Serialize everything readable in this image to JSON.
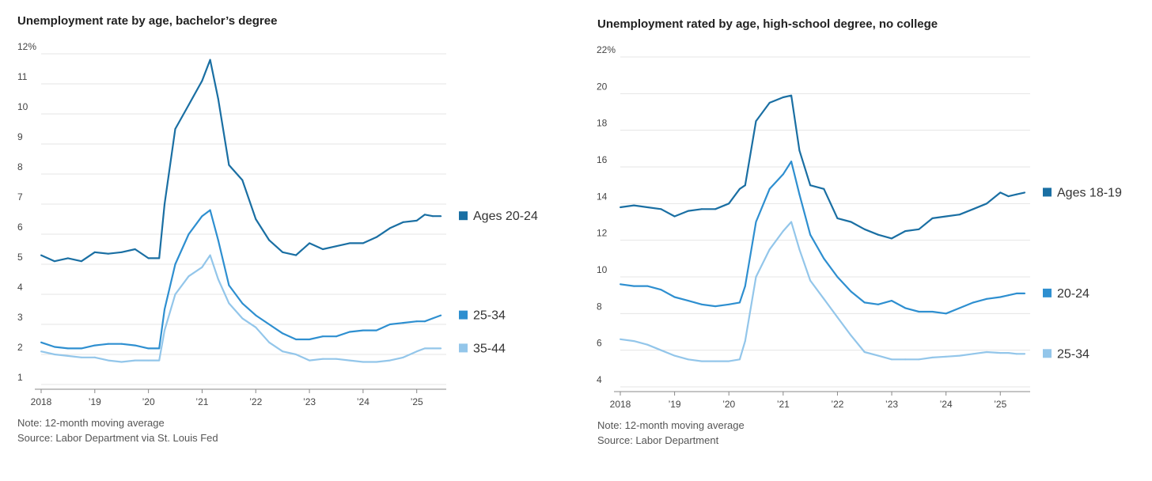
{
  "chart_data": [
    {
      "type": "line",
      "title": "Unemployment rate by age, bachelor’s degree",
      "note": "Note: 12-month moving average",
      "source": "Source: Labor Department via St. Louis Fed",
      "ylim": [
        1,
        12
      ],
      "yticks": [
        1,
        2,
        3,
        4,
        5,
        6,
        7,
        8,
        9,
        10,
        11,
        12
      ],
      "ytick_labels": [
        "1",
        "2",
        "3",
        "4",
        "5",
        "6",
        "7",
        "8",
        "9",
        "10",
        "11",
        "12%"
      ],
      "xlim": [
        2018,
        2025.55
      ],
      "xticks": [
        2018,
        2019,
        2020,
        2021,
        2022,
        2023,
        2024,
        2025
      ],
      "xtick_labels": [
        "2018",
        "’19",
        "’20",
        "’21",
        "’22",
        "’23",
        "’24",
        "’25"
      ],
      "grid": true,
      "legend": "right",
      "series": [
        {
          "name": "Ages 20-24",
          "color": "#1a6fa3",
          "x": [
            2018.0,
            2018.25,
            2018.5,
            2018.75,
            2019.0,
            2019.25,
            2019.5,
            2019.75,
            2020.0,
            2020.2,
            2020.3,
            2020.5,
            2020.75,
            2021.0,
            2021.15,
            2021.3,
            2021.5,
            2021.75,
            2022.0,
            2022.25,
            2022.5,
            2022.75,
            2023.0,
            2023.25,
            2023.5,
            2023.75,
            2024.0,
            2024.25,
            2024.5,
            2024.75,
            2025.0,
            2025.15,
            2025.3,
            2025.45
          ],
          "y": [
            5.3,
            5.1,
            5.2,
            5.1,
            5.4,
            5.35,
            5.4,
            5.5,
            5.2,
            5.2,
            7.0,
            9.5,
            10.3,
            11.1,
            11.8,
            10.5,
            8.3,
            7.8,
            6.5,
            5.8,
            5.4,
            5.3,
            5.7,
            5.5,
            5.6,
            5.7,
            5.7,
            5.9,
            6.2,
            6.4,
            6.45,
            6.65,
            6.6,
            6.6
          ]
        },
        {
          "name": "25-34",
          "color": "#2e8fd0",
          "x": [
            2018.0,
            2018.25,
            2018.5,
            2018.75,
            2019.0,
            2019.25,
            2019.5,
            2019.75,
            2020.0,
            2020.2,
            2020.3,
            2020.5,
            2020.75,
            2021.0,
            2021.15,
            2021.3,
            2021.5,
            2021.75,
            2022.0,
            2022.25,
            2022.5,
            2022.75,
            2023.0,
            2023.25,
            2023.5,
            2023.75,
            2024.0,
            2024.25,
            2024.5,
            2024.75,
            2025.0,
            2025.15,
            2025.3,
            2025.45
          ],
          "y": [
            2.4,
            2.25,
            2.2,
            2.2,
            2.3,
            2.35,
            2.35,
            2.3,
            2.2,
            2.2,
            3.5,
            5.0,
            6.0,
            6.6,
            6.8,
            5.8,
            4.3,
            3.7,
            3.3,
            3.0,
            2.7,
            2.5,
            2.5,
            2.6,
            2.6,
            2.75,
            2.8,
            2.8,
            3.0,
            3.05,
            3.1,
            3.1,
            3.2,
            3.3
          ]
        },
        {
          "name": "35-44",
          "color": "#93c6ea",
          "x": [
            2018.0,
            2018.25,
            2018.5,
            2018.75,
            2019.0,
            2019.25,
            2019.5,
            2019.75,
            2020.0,
            2020.2,
            2020.3,
            2020.5,
            2020.75,
            2021.0,
            2021.15,
            2021.3,
            2021.5,
            2021.75,
            2022.0,
            2022.25,
            2022.5,
            2022.75,
            2023.0,
            2023.25,
            2023.5,
            2023.75,
            2024.0,
            2024.25,
            2024.5,
            2024.75,
            2025.0,
            2025.15,
            2025.3,
            2025.45
          ],
          "y": [
            2.1,
            2.0,
            1.95,
            1.9,
            1.9,
            1.8,
            1.75,
            1.8,
            1.8,
            1.8,
            2.8,
            4.0,
            4.6,
            4.9,
            5.3,
            4.5,
            3.7,
            3.2,
            2.9,
            2.4,
            2.1,
            2.0,
            1.8,
            1.85,
            1.85,
            1.8,
            1.75,
            1.75,
            1.8,
            1.9,
            2.1,
            2.2,
            2.2,
            2.2
          ]
        }
      ]
    },
    {
      "type": "line",
      "title": "Unemployment rated by age, high-school degree, no college",
      "note": "Note: 12-month moving average",
      "source": "Source: Labor Department",
      "ylim": [
        4,
        22
      ],
      "yticks": [
        4,
        6,
        8,
        10,
        12,
        14,
        16,
        18,
        20,
        22
      ],
      "ytick_labels": [
        "4",
        "6",
        "8",
        "10",
        "12",
        "14",
        "16",
        "18",
        "20",
        "22%"
      ],
      "xlim": [
        2018,
        2025.55
      ],
      "xticks": [
        2018,
        2019,
        2020,
        2021,
        2022,
        2023,
        2024,
        2025
      ],
      "xtick_labels": [
        "2018",
        "’19",
        "’20",
        "’21",
        "’22",
        "’23",
        "’24",
        "’25"
      ],
      "grid": true,
      "legend": "right",
      "series": [
        {
          "name": "Ages 18-19",
          "color": "#1a6fa3",
          "x": [
            2018.0,
            2018.25,
            2018.5,
            2018.75,
            2019.0,
            2019.25,
            2019.5,
            2019.75,
            2020.0,
            2020.2,
            2020.3,
            2020.5,
            2020.75,
            2021.0,
            2021.15,
            2021.3,
            2021.5,
            2021.75,
            2022.0,
            2022.25,
            2022.5,
            2022.75,
            2023.0,
            2023.25,
            2023.5,
            2023.75,
            2024.0,
            2024.25,
            2024.5,
            2024.75,
            2025.0,
            2025.15,
            2025.3,
            2025.45
          ],
          "y": [
            13.8,
            13.9,
            13.8,
            13.7,
            13.3,
            13.6,
            13.7,
            13.7,
            14.0,
            14.8,
            15.0,
            18.5,
            19.5,
            19.8,
            19.9,
            16.9,
            15.0,
            14.8,
            13.2,
            13.0,
            12.6,
            12.3,
            12.1,
            12.5,
            12.6,
            13.2,
            13.3,
            13.4,
            13.7,
            14.0,
            14.6,
            14.4,
            14.5,
            14.6
          ]
        },
        {
          "name": "20-24",
          "color": "#2e8fd0",
          "x": [
            2018.0,
            2018.25,
            2018.5,
            2018.75,
            2019.0,
            2019.25,
            2019.5,
            2019.75,
            2020.0,
            2020.2,
            2020.3,
            2020.5,
            2020.75,
            2021.0,
            2021.15,
            2021.3,
            2021.5,
            2021.75,
            2022.0,
            2022.25,
            2022.5,
            2022.75,
            2023.0,
            2023.25,
            2023.5,
            2023.75,
            2024.0,
            2024.25,
            2024.5,
            2024.75,
            2025.0,
            2025.15,
            2025.3,
            2025.45
          ],
          "y": [
            9.6,
            9.5,
            9.5,
            9.3,
            8.9,
            8.7,
            8.5,
            8.4,
            8.5,
            8.6,
            9.5,
            13.0,
            14.8,
            15.6,
            16.3,
            14.5,
            12.3,
            11.0,
            10.0,
            9.2,
            8.6,
            8.5,
            8.7,
            8.3,
            8.1,
            8.1,
            8.0,
            8.3,
            8.6,
            8.8,
            8.9,
            9.0,
            9.1,
            9.1
          ]
        },
        {
          "name": "25-34",
          "color": "#93c6ea",
          "x": [
            2018.0,
            2018.25,
            2018.5,
            2018.75,
            2019.0,
            2019.25,
            2019.5,
            2019.75,
            2020.0,
            2020.2,
            2020.3,
            2020.5,
            2020.75,
            2021.0,
            2021.15,
            2021.3,
            2021.5,
            2021.75,
            2022.0,
            2022.25,
            2022.5,
            2022.75,
            2023.0,
            2023.25,
            2023.5,
            2023.75,
            2024.0,
            2024.25,
            2024.5,
            2024.75,
            2025.0,
            2025.15,
            2025.3,
            2025.45
          ],
          "y": [
            6.6,
            6.5,
            6.3,
            6.0,
            5.7,
            5.5,
            5.4,
            5.4,
            5.4,
            5.5,
            6.5,
            10.0,
            11.5,
            12.5,
            13.0,
            11.5,
            9.8,
            8.8,
            7.8,
            6.8,
            5.9,
            5.7,
            5.5,
            5.5,
            5.5,
            5.6,
            5.65,
            5.7,
            5.8,
            5.9,
            5.85,
            5.85,
            5.8,
            5.8
          ]
        }
      ]
    }
  ]
}
